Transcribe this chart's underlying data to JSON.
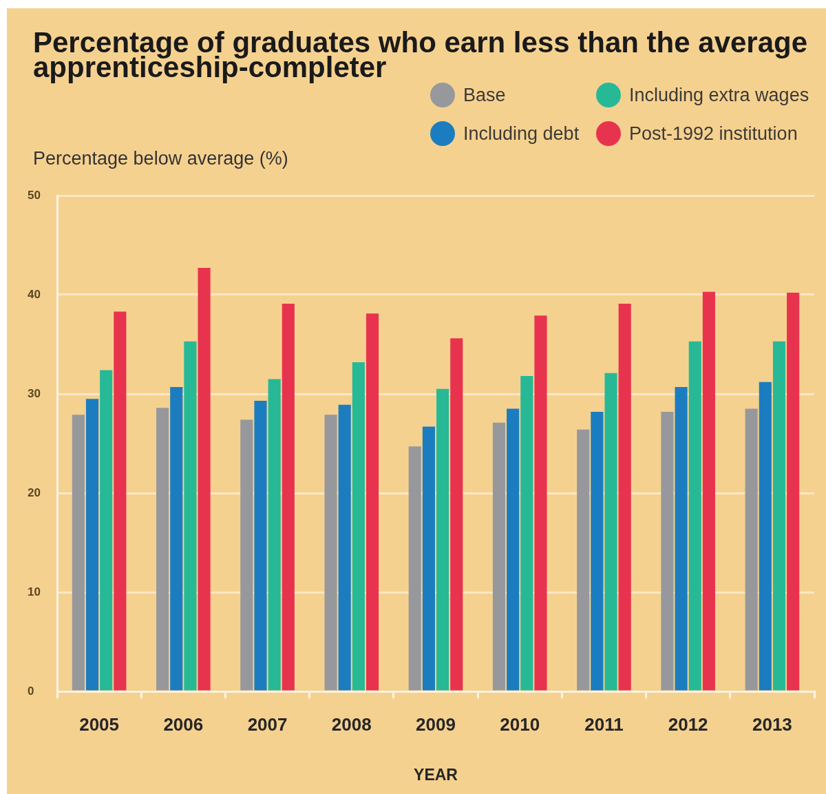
{
  "chart_data": {
    "type": "bar",
    "title": "Percentage of graduates who earn less than the average apprenticeship-completer",
    "ylabel": "Percentage below average (%)",
    "xlabel": "YEAR",
    "categories": [
      "2005",
      "2006",
      "2007",
      "2008",
      "2009",
      "2010",
      "2011",
      "2012",
      "2013"
    ],
    "series": [
      {
        "name": "Base",
        "color": "#97989c",
        "values": [
          27.9,
          28.6,
          27.4,
          27.9,
          24.7,
          27.1,
          26.4,
          28.2,
          28.5
        ]
      },
      {
        "name": "Including debt",
        "color": "#1b7dc0",
        "values": [
          29.5,
          30.7,
          29.3,
          28.9,
          26.7,
          28.5,
          28.2,
          30.7,
          31.2
        ]
      },
      {
        "name": "Including extra wages",
        "color": "#27b996",
        "values": [
          32.4,
          35.3,
          31.5,
          33.2,
          30.5,
          31.8,
          32.1,
          35.3,
          35.3
        ]
      },
      {
        "name": "Post-1992 institution",
        "color": "#e8334f",
        "values": [
          38.3,
          42.7,
          39.1,
          38.1,
          35.6,
          37.9,
          39.1,
          40.3,
          40.2
        ]
      }
    ],
    "ylim": [
      0,
      50
    ],
    "yticks": [
      0,
      10,
      20,
      30,
      40,
      50
    ],
    "grid": "y",
    "legend": "top right"
  }
}
